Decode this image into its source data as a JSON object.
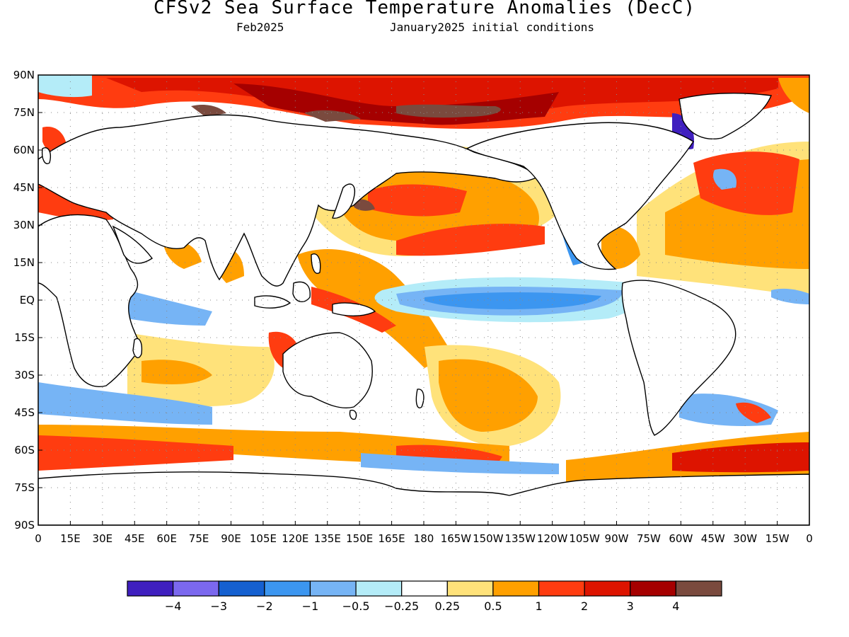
{
  "title": "CFSv2 Sea Surface Temperature Anomalies (DecC)",
  "subtitle_left": "Feb2025",
  "subtitle_right": "January2025 initial conditions",
  "y_ticks": [
    "90N",
    "75N",
    "60N",
    "45N",
    "30N",
    "15N",
    "EQ",
    "15S",
    "30S",
    "45S",
    "60S",
    "75S",
    "90S"
  ],
  "x_ticks": [
    "0",
    "15E",
    "30E",
    "45E",
    "60E",
    "75E",
    "90E",
    "105E",
    "120E",
    "135E",
    "150E",
    "165E",
    "180",
    "165W",
    "150W",
    "135W",
    "120W",
    "105W",
    "90W",
    "75W",
    "60W",
    "45W",
    "30W",
    "15W",
    "0"
  ],
  "legend": {
    "colors": [
      "#3f1fbf",
      "#7b68ee",
      "#1560d0",
      "#3c96f0",
      "#76b4f5",
      "#b4ecf8",
      "#ffffff",
      "#ffe27a",
      "#ffa000",
      "#ff3c10",
      "#dd1400",
      "#a50000",
      "#7a4a3e"
    ],
    "labels": [
      "−4",
      "−3",
      "−2",
      "−1",
      "−0.5",
      "−0.25",
      "0.25",
      "0.5",
      "1",
      "2",
      "3",
      "4"
    ]
  }
}
